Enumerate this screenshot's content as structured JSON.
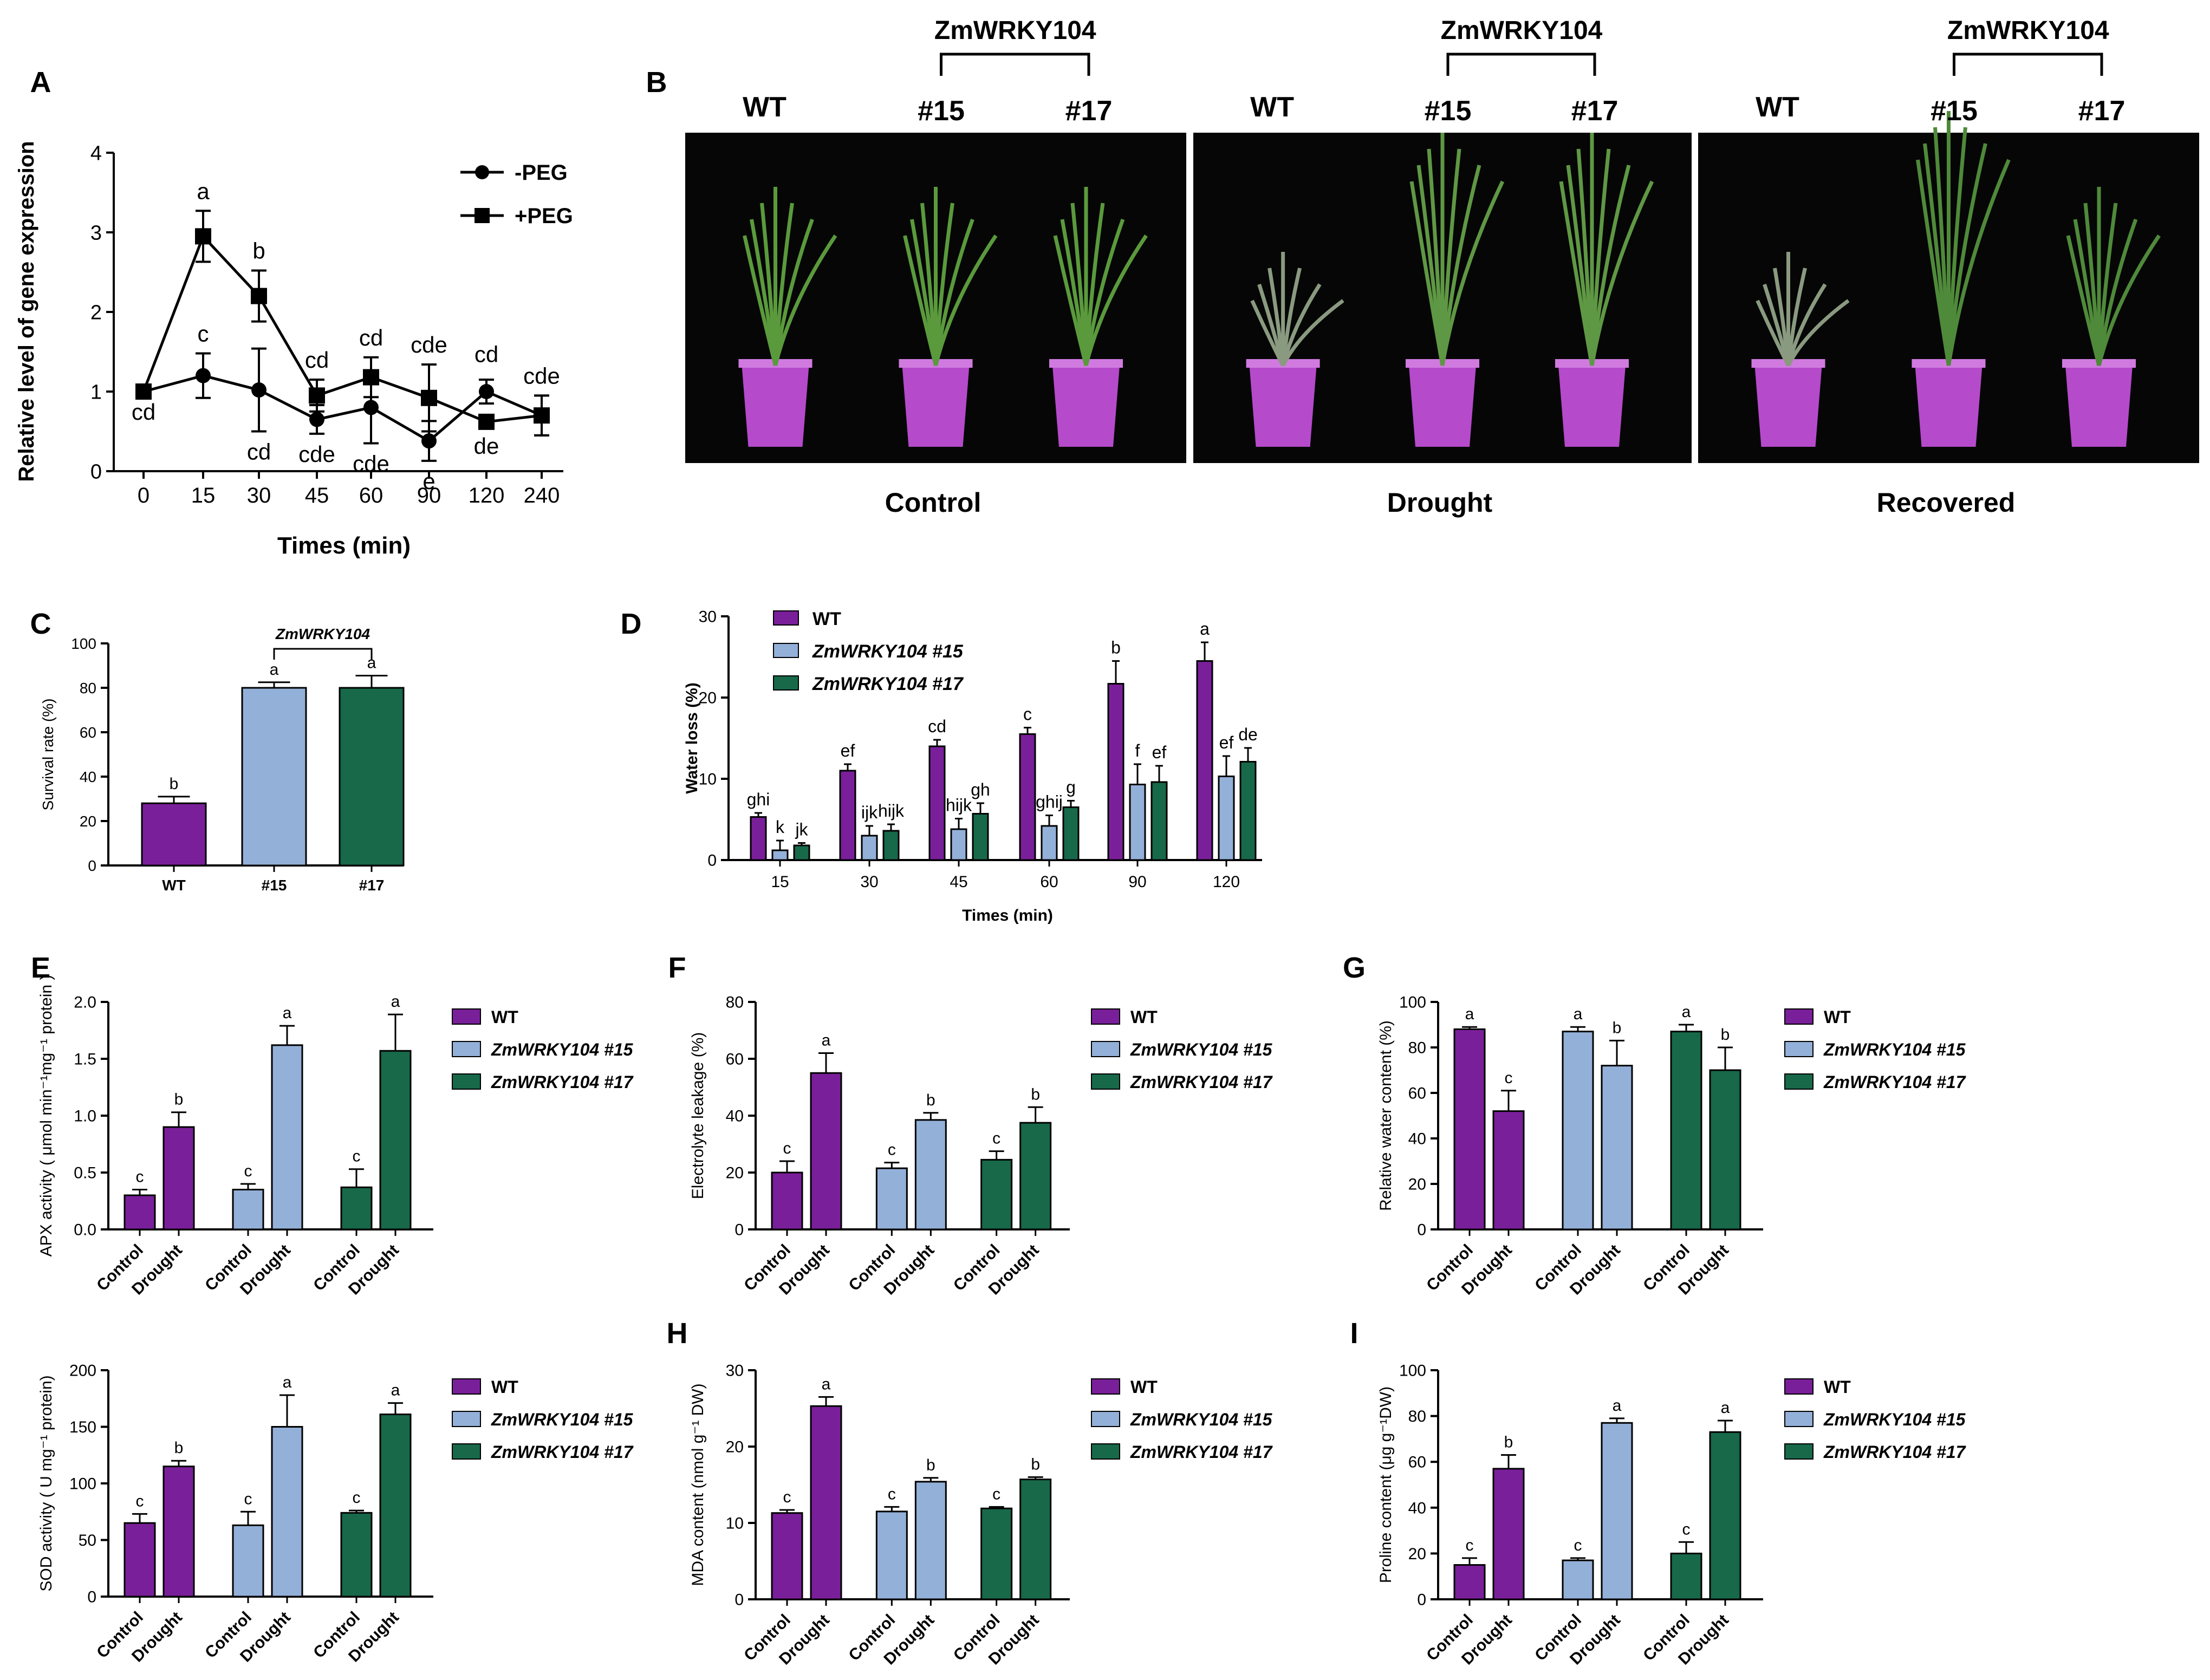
{
  "figure": {
    "panel_letters": [
      "A",
      "B",
      "C",
      "D",
      "E",
      "F",
      "G",
      "H",
      "I"
    ],
    "colors": {
      "wt": "#7a1f9a",
      "l15": "#93b0d8",
      "l17": "#17694a",
      "pot": "#b54acb",
      "leaf": "#4f8a3a",
      "ink": "#000000"
    }
  },
  "panel_b": {
    "groups": [
      {
        "title": "Control",
        "construct": "ZmWRKY104",
        "wt": "WT",
        "l15": "#15",
        "l17": "#17"
      },
      {
        "title": "Drought",
        "construct": "ZmWRKY104",
        "wt": "WT",
        "l15": "#15",
        "l17": "#17"
      },
      {
        "title": "Recovered",
        "construct": "ZmWRKY104",
        "wt": "WT",
        "l15": "#15",
        "l17": "#17"
      }
    ]
  },
  "chart_data": [
    {
      "id": "A",
      "type": "line",
      "xlabel": "Times (min)",
      "ylabel": "Relative level of gene expression",
      "ylim": [
        0,
        4
      ],
      "yticks": [
        "0",
        "1",
        "2",
        "3",
        "4"
      ],
      "categories": [
        "0",
        "15",
        "30",
        "45",
        "60",
        "90",
        "120",
        "240"
      ],
      "series": [
        {
          "name": "-PEG",
          "marker": "circle",
          "values": [
            1.0,
            1.2,
            1.02,
            0.65,
            0.8,
            0.38,
            1.0,
            0.7
          ],
          "errors": [
            0,
            0.28,
            0.52,
            0.18,
            0.45,
            0.25,
            0.15,
            0.25
          ],
          "letters": [
            "",
            "c",
            "cd",
            "cde",
            "cde",
            "e",
            "",
            "cde"
          ],
          "letter_pos": [
            "",
            "above",
            "below",
            "below",
            "below",
            "below",
            "",
            "above"
          ]
        },
        {
          "name": "+PEG",
          "marker": "square",
          "values": [
            1.0,
            2.95,
            2.2,
            0.95,
            1.18,
            0.92,
            0.62,
            0.7
          ],
          "errors": [
            0,
            0.32,
            0.32,
            0.2,
            0.25,
            0.42,
            0.05,
            0.25
          ],
          "letters": [
            "cd",
            "a",
            "b",
            "cd",
            "cd",
            "cde",
            "de",
            ""
          ],
          "letter_pos": [
            "below",
            "above",
            "above",
            "above",
            "above",
            "above",
            "below",
            ""
          ]
        }
      ],
      "extra_letters": [
        {
          "x": "120",
          "text": "cd",
          "y": 1.22
        }
      ],
      "legend_position": "top-right"
    },
    {
      "id": "C",
      "type": "bar",
      "ylabel": "Survival rate (%)",
      "ylim": [
        0,
        100
      ],
      "yticks": [
        "0",
        "20",
        "40",
        "60",
        "80",
        "100"
      ],
      "categories": [
        "WT",
        "#15",
        "#17"
      ],
      "values": [
        28,
        80,
        80
      ],
      "errors": [
        3,
        2.5,
        5.5
      ],
      "letters": [
        "b",
        "a",
        "a"
      ],
      "bracket_label": "ZmWRKY104"
    },
    {
      "id": "D",
      "type": "bar",
      "xlabel": "Times (min)",
      "ylabel": "Water loss (%)",
      "ylim": [
        0,
        30
      ],
      "yticks": [
        "0",
        "10",
        "20",
        "30"
      ],
      "categories": [
        "15",
        "30",
        "45",
        "60",
        "90",
        "120"
      ],
      "series": [
        {
          "name": "WT",
          "values": [
            5.3,
            11,
            14,
            15.5,
            21.7,
            24.5
          ],
          "errors": [
            0.5,
            0.8,
            0.8,
            0.8,
            2.8,
            2.3
          ],
          "letters": [
            "ghi",
            "ef",
            "cd",
            "c",
            "b",
            "a"
          ]
        },
        {
          "name": "ZmWRKY104 #15",
          "values": [
            1.2,
            3,
            3.8,
            4.2,
            9.3,
            10.3
          ],
          "errors": [
            1.2,
            1.2,
            1.3,
            1.3,
            2.5,
            2.5
          ],
          "letters": [
            "k",
            "ijk",
            "hijk",
            "ghij",
            "f",
            "ef"
          ]
        },
        {
          "name": "ZmWRKY104 #17",
          "values": [
            1.8,
            3.6,
            5.7,
            6.5,
            9.6,
            12.1
          ],
          "errors": [
            0.3,
            0.8,
            1.3,
            0.8,
            2.0,
            1.7
          ],
          "letters": [
            "jk",
            "hijk",
            "gh",
            "g",
            "ef",
            "de"
          ]
        }
      ],
      "legend_position": "top-left"
    },
    {
      "id": "E1",
      "type": "bar",
      "ylabel": "APX activity ( μmol min⁻¹mg⁻¹ protein )",
      "ylim": [
        0,
        2
      ],
      "yticks": [
        "0.0",
        "0.5",
        "1.0",
        "1.5",
        "2.0"
      ],
      "categories": [
        "Control",
        "Drought",
        "Control",
        "Drought",
        "Control",
        "Drought"
      ],
      "values": [
        0.3,
        0.9,
        0.35,
        1.62,
        0.37,
        1.57
      ],
      "errors": [
        0.05,
        0.13,
        0.05,
        0.17,
        0.16,
        0.32
      ],
      "letters": [
        "c",
        "b",
        "c",
        "a",
        "c",
        "a"
      ],
      "legend": [
        "WT",
        "ZmWRKY104 #15",
        "ZmWRKY104 #17"
      ]
    },
    {
      "id": "E2",
      "type": "bar",
      "ylabel": "SOD activity ( U mg⁻¹ protein)",
      "ylim": [
        0,
        200
      ],
      "yticks": [
        "0",
        "50",
        "100",
        "150",
        "200"
      ],
      "categories": [
        "Control",
        "Drought",
        "Control",
        "Drought",
        "Control",
        "Drought"
      ],
      "values": [
        65,
        115,
        63,
        150,
        74,
        161
      ],
      "errors": [
        8,
        5,
        12,
        28,
        2,
        10
      ],
      "letters": [
        "c",
        "b",
        "c",
        "a",
        "c",
        "a"
      ],
      "legend": [
        "WT",
        "ZmWRKY104 #15",
        "ZmWRKY104 #17"
      ]
    },
    {
      "id": "F",
      "type": "bar",
      "ylabel": "Electrolyte leakage (%)",
      "ylim": [
        0,
        80
      ],
      "yticks": [
        "0",
        "20",
        "40",
        "60",
        "80"
      ],
      "categories": [
        "Control",
        "Drought",
        "Control",
        "Drought",
        "Control",
        "Drought"
      ],
      "values": [
        20,
        55,
        21.5,
        38.5,
        24.5,
        37.5
      ],
      "errors": [
        4,
        7,
        2,
        2.5,
        3,
        5.5
      ],
      "letters": [
        "c",
        "a",
        "c",
        "b",
        "c",
        "b"
      ],
      "legend": [
        "WT",
        "ZmWRKY104 #15",
        "ZmWRKY104 #17"
      ]
    },
    {
      "id": "G",
      "type": "bar",
      "ylabel": "Relative water content (%)",
      "ylim": [
        0,
        100
      ],
      "yticks": [
        "0",
        "20",
        "40",
        "60",
        "80",
        "100"
      ],
      "categories": [
        "Control",
        "Drought",
        "Control",
        "Drought",
        "Control",
        "Drought"
      ],
      "values": [
        88,
        52,
        87,
        72,
        87,
        70
      ],
      "errors": [
        1,
        9,
        2,
        11,
        3,
        10
      ],
      "letters": [
        "a",
        "c",
        "a",
        "b",
        "a",
        "b"
      ],
      "legend": [
        "WT",
        "ZmWRKY104 #15",
        "ZmWRKY104 #17"
      ]
    },
    {
      "id": "H",
      "type": "bar",
      "ylabel": "MDA content (nmol g⁻¹ DW)",
      "ylim": [
        0,
        30
      ],
      "yticks": [
        "0",
        "10",
        "20",
        "30"
      ],
      "categories": [
        "Control",
        "Drought",
        "Control",
        "Drought",
        "Control",
        "Drought"
      ],
      "values": [
        11.3,
        25.3,
        11.5,
        15.4,
        11.9,
        15.7
      ],
      "errors": [
        0.4,
        1.2,
        0.6,
        0.5,
        0.2,
        0.3
      ],
      "letters": [
        "c",
        "a",
        "c",
        "b",
        "c",
        "b"
      ],
      "legend": [
        "WT",
        "ZmWRKY104 #15",
        "ZmWRKY104 #17"
      ]
    },
    {
      "id": "I",
      "type": "bar",
      "ylabel": "Proline content (μg g⁻¹DW)",
      "ylim": [
        0,
        100
      ],
      "yticks": [
        "0",
        "20",
        "40",
        "60",
        "80",
        "100"
      ],
      "categories": [
        "Control",
        "Drought",
        "Control",
        "Drought",
        "Control",
        "Drought"
      ],
      "values": [
        15,
        57,
        17,
        77,
        20,
        73
      ],
      "errors": [
        3,
        6,
        1,
        2,
        5,
        5
      ],
      "letters": [
        "c",
        "b",
        "c",
        "a",
        "c",
        "a"
      ],
      "legend": [
        "WT",
        "ZmWRKY104 #15",
        "ZmWRKY104 #17"
      ]
    }
  ]
}
